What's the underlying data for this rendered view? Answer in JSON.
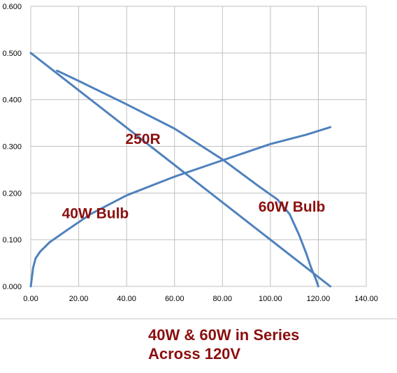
{
  "chart_data": {
    "type": "line",
    "xlim": [
      0,
      140
    ],
    "ylim": [
      0,
      0.6
    ],
    "x_ticks": [
      "0.00",
      "20.00",
      "40.00",
      "60.00",
      "80.00",
      "100.00",
      "120.00",
      "140.00"
    ],
    "y_ticks": [
      "0.000",
      "0.100",
      "0.200",
      "0.300",
      "0.400",
      "0.500",
      "0.600"
    ],
    "grid": true,
    "series": [
      {
        "name": "250R",
        "color": "#4f81bd",
        "points": [
          [
            0,
            0.5
          ],
          [
            125,
            0.0
          ]
        ]
      },
      {
        "name": "40W Bulb",
        "color": "#4f81bd",
        "points": [
          [
            0,
            0.0
          ],
          [
            1,
            0.04
          ],
          [
            2,
            0.06
          ],
          [
            4,
            0.075
          ],
          [
            8,
            0.095
          ],
          [
            15,
            0.12
          ],
          [
            25,
            0.155
          ],
          [
            40,
            0.195
          ],
          [
            60,
            0.235
          ],
          [
            80,
            0.27
          ],
          [
            100,
            0.305
          ],
          [
            115,
            0.325
          ],
          [
            125,
            0.341
          ]
        ]
      },
      {
        "name": "60W Bulb",
        "color": "#4f81bd",
        "points": [
          [
            11,
            0.462
          ],
          [
            20,
            0.44
          ],
          [
            40,
            0.39
          ],
          [
            60,
            0.338
          ],
          [
            80,
            0.272
          ],
          [
            95,
            0.215
          ],
          [
            103,
            0.186
          ],
          [
            108,
            0.155
          ],
          [
            112,
            0.11
          ],
          [
            115,
            0.07
          ],
          [
            117,
            0.04
          ],
          [
            119,
            0.015
          ],
          [
            120,
            0.0
          ]
        ]
      }
    ],
    "annotations": [
      {
        "text": "250R",
        "x": 39.5,
        "y": 0.305
      },
      {
        "text": "40W Bulb",
        "x": 13,
        "y": 0.146
      },
      {
        "text": "60W Bulb",
        "x": 95,
        "y": 0.16
      }
    ],
    "caption": [
      "40W & 60W in Series",
      "Across 120V"
    ]
  }
}
